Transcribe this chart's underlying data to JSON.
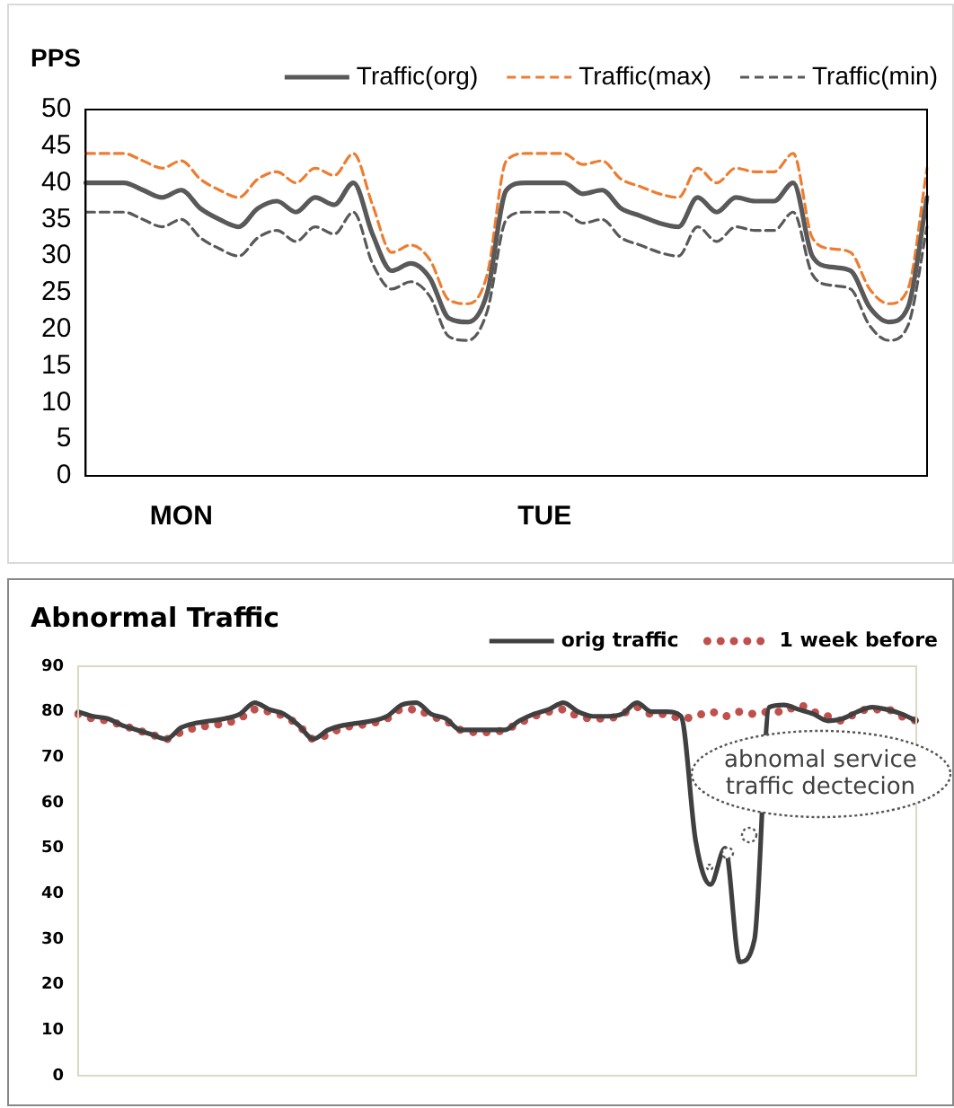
{
  "chart_data": [
    {
      "type": "line",
      "ylabel": "PPS",
      "categories": [
        null,
        null,
        null,
        null,
        null,
        "MON",
        null,
        null,
        null,
        null,
        null,
        null,
        null,
        null,
        null,
        null,
        null,
        null,
        null,
        null,
        null,
        null,
        null,
        null,
        "TUE",
        null,
        null,
        null,
        null,
        null,
        null,
        null,
        null,
        null,
        null,
        null,
        null,
        null,
        null,
        null,
        null,
        null,
        null,
        null,
        null
      ],
      "series": [
        {
          "name": "Traffic(org)",
          "color": "#595959",
          "line_style": "solid",
          "values": [
            40,
            40,
            40,
            39,
            38,
            39,
            36.5,
            35,
            34,
            36.5,
            37.5,
            36,
            38,
            37,
            40,
            33,
            28,
            29,
            27,
            21.5,
            21,
            25,
            39,
            40,
            40,
            40,
            38.5,
            39,
            36.5,
            35.5,
            34.5,
            34,
            38,
            36,
            38,
            37.5,
            37.5,
            40,
            30,
            28.5,
            28,
            23,
            21,
            23,
            38
          ]
        },
        {
          "name": "Traffic(max)",
          "color": "#ed7d31",
          "line_style": "dashed",
          "values": [
            44,
            44,
            44,
            43,
            42,
            43,
            40.5,
            39,
            38,
            40.5,
            41.5,
            40,
            42,
            41,
            44,
            37,
            30.5,
            31.5,
            29.5,
            24,
            23.5,
            27.5,
            43,
            44,
            44,
            44,
            42.5,
            43,
            40.5,
            39.5,
            38.5,
            38,
            42,
            40,
            42,
            41.5,
            41.5,
            44,
            32.5,
            31,
            30.5,
            25.5,
            23.5,
            25.5,
            42
          ]
        },
        {
          "name": "Traffic(min)",
          "color": "#595959",
          "line_style": "dashed",
          "values": [
            36,
            36,
            36,
            35,
            34,
            35,
            32.5,
            31,
            30,
            32.5,
            33.5,
            32,
            34,
            33,
            36,
            29,
            25.5,
            26.5,
            24.5,
            19,
            18.5,
            22.5,
            35,
            36,
            36,
            36,
            34.5,
            35,
            32.5,
            31.5,
            30.5,
            30,
            34,
            32,
            34,
            33.5,
            33.5,
            36,
            27.5,
            26,
            25.5,
            20.5,
            18.5,
            20.5,
            34
          ]
        }
      ],
      "ylim": [
        0,
        50
      ],
      "yticks": [
        0,
        5,
        10,
        15,
        20,
        25,
        30,
        35,
        40,
        45,
        50
      ],
      "grid": false,
      "legend": "top right",
      "marker": "none"
    },
    {
      "type": "line",
      "title": "Abnormal Traffic",
      "categories": [
        null,
        null,
        null,
        null,
        null,
        null,
        null,
        null,
        null,
        null,
        null,
        null,
        null,
        null,
        null,
        null,
        null,
        null,
        null,
        null,
        null,
        null,
        null,
        null,
        null,
        null,
        null,
        null,
        null,
        null,
        null,
        null,
        null,
        null,
        null,
        null,
        null,
        null,
        null,
        null,
        null,
        null,
        null,
        null,
        null,
        null,
        null,
        null,
        null,
        null,
        null,
        null,
        null,
        null,
        null,
        null,
        null,
        null
      ],
      "series": [
        {
          "name": "orig traffic",
          "color": "#404040",
          "line_style": "solid",
          "values": [
            80,
            79,
            78.5,
            77,
            76,
            75,
            74,
            76.5,
            77.5,
            78,
            78.5,
            79.5,
            82,
            80.5,
            79.5,
            77,
            74,
            76,
            77,
            77.5,
            78,
            79,
            81.5,
            82,
            79.5,
            78.5,
            76,
            76,
            76,
            76,
            78,
            79.5,
            80.5,
            82,
            80,
            79,
            79,
            79.5,
            82,
            80,
            80,
            79,
            51.5,
            42,
            50,
            25,
            30,
            81,
            81.5,
            80.5,
            79.5,
            78,
            78.5,
            80,
            81,
            80.5,
            79.5,
            78
          ]
        },
        {
          "name": "1 week before",
          "color": "#c0504d",
          "line_style": "dotted",
          "values": [
            79.5,
            78.5,
            78,
            77,
            76,
            75,
            74,
            75.5,
            76.5,
            77,
            77.5,
            78.5,
            80.5,
            80,
            79,
            77,
            74,
            75,
            76.5,
            77,
            77.5,
            78.5,
            80.5,
            80.5,
            79,
            78,
            76,
            75.5,
            75.5,
            76,
            77.5,
            79,
            80,
            80.5,
            79,
            78.5,
            78.5,
            79.5,
            81,
            79.5,
            79.5,
            78.5,
            79,
            80,
            79,
            80,
            79.5,
            80,
            80,
            81.5,
            80,
            79,
            78,
            80,
            80.5,
            80.5,
            79,
            78
          ]
        }
      ],
      "ylim": [
        0,
        90
      ],
      "yticks": [
        0,
        10,
        20,
        30,
        40,
        50,
        60,
        70,
        80,
        90
      ],
      "grid": false,
      "legend": "top right",
      "marker": "none",
      "tick_labels": "y",
      "annotations": [
        "abnomal service traffic dectecion"
      ]
    }
  ]
}
